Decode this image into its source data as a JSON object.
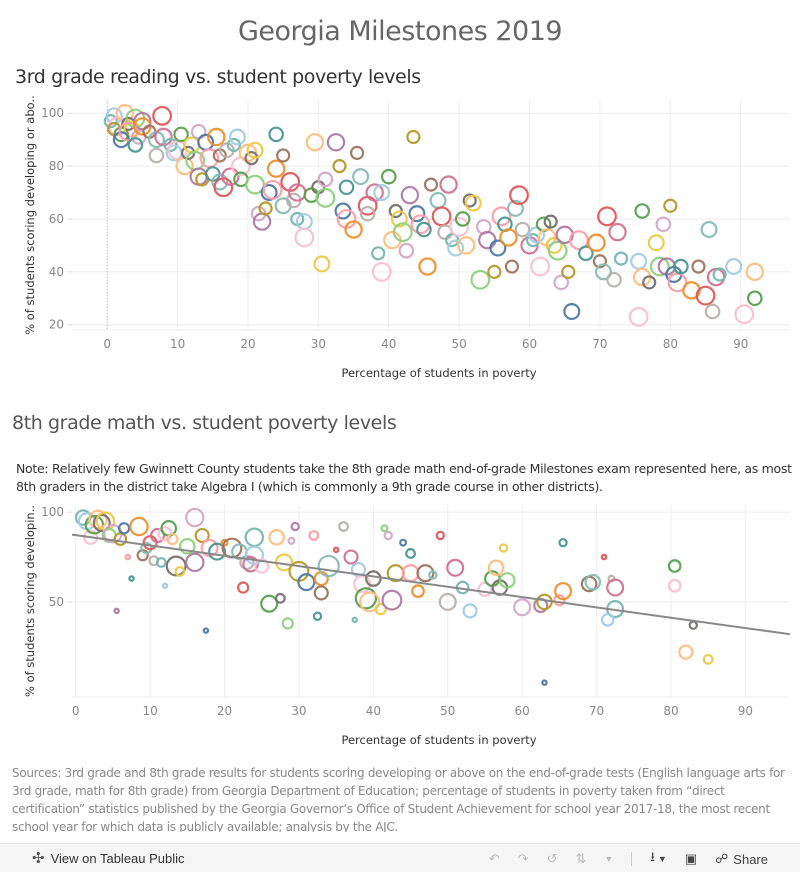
{
  "title": "Georgia Milestones 2019",
  "section1": {
    "title": "3rd grade reading vs. student poverty levels"
  },
  "section2": {
    "title": "8th grade math vs. student poverty levels",
    "note": "Note: Relatively few Gwinnett County students take the 8th grade math end-of-grade Milestones exam represented here, as most 8th graders in the district take Algebra I (which is commonly a 9th grade course in other districts)."
  },
  "sources": "Sources: 3rd grade and 8th grade results for students scoring developing or above on the end-of-grade tests (English language arts for 3rd grade, math for 8th grade) from Georgia Department of Education; percentage of students in poverty taken from “direct certification” statistics published by the Georgia Governor’s Office of Student Achievement for school year 2017-18, the most recent school year for which data is publicly available; analysis by the AJC.",
  "toolbar": {
    "view_label": "View on Tableau Public",
    "share_label": "Share",
    "icons": [
      "tableau-logo-icon",
      "undo-icon",
      "redo-icon",
      "revert-icon",
      "pause-icon",
      "dropdown-icon",
      "download-icon",
      "fullscreen-icon",
      "share-icon"
    ]
  },
  "palette": [
    "#4e79a7",
    "#f28e2b",
    "#e15759",
    "#76b7b2",
    "#59a14f",
    "#edc948",
    "#b07aa1",
    "#ff9da7",
    "#9c755f",
    "#bab0ac",
    "#a0cbe8",
    "#ffbe7d",
    "#8cd17d",
    "#b6992d",
    "#499894",
    "#86bcb6",
    "#d37295",
    "#fabfd2",
    "#79706e",
    "#d4a6c8"
  ],
  "chart_data": [
    {
      "type": "scatter",
      "title": "3rd grade reading vs. student poverty levels",
      "xlabel": "Percentage of students in poverty",
      "ylabel": "% of students scoring developing or abo..",
      "xlim": [
        -5,
        97
      ],
      "ylim": [
        18,
        105
      ],
      "xticks": [
        "0",
        "10",
        "20",
        "30",
        "40",
        "50",
        "60",
        "70",
        "80",
        "90"
      ],
      "yticks": [
        "20",
        "40",
        "60",
        "80",
        "100"
      ],
      "grid": true,
      "reference_line_x": 0,
      "points": [
        [
          0.5,
          97
        ],
        [
          1,
          99
        ],
        [
          1.5,
          95
        ],
        [
          2,
          92
        ],
        [
          2.5,
          100
        ],
        [
          3,
          96
        ],
        [
          3.5,
          94
        ],
        [
          4,
          98
        ],
        [
          4.5,
          91
        ],
        [
          5,
          97
        ],
        [
          1,
          94
        ],
        [
          2,
          90
        ],
        [
          3,
          93
        ],
        [
          4,
          88
        ],
        [
          5,
          95
        ],
        [
          6,
          93
        ],
        [
          7,
          90
        ],
        [
          7.8,
          99
        ],
        [
          7,
          84
        ],
        [
          8,
          91
        ],
        [
          9,
          88
        ],
        [
          9.5,
          85
        ],
        [
          10,
          86
        ],
        [
          10.5,
          92
        ],
        [
          11,
          80
        ],
        [
          11.5,
          85
        ],
        [
          12,
          88
        ],
        [
          12.5,
          82
        ],
        [
          13,
          93
        ],
        [
          13,
          76
        ],
        [
          13.5,
          75
        ],
        [
          14,
          89
        ],
        [
          14.5,
          83
        ],
        [
          15,
          77
        ],
        [
          15.5,
          91
        ],
        [
          16,
          84
        ],
        [
          16,
          74
        ],
        [
          16.5,
          72
        ],
        [
          17,
          86
        ],
        [
          17.5,
          76
        ],
        [
          18,
          88
        ],
        [
          18.5,
          91
        ],
        [
          19,
          80
        ],
        [
          19,
          75
        ],
        [
          20,
          85
        ],
        [
          20.5,
          83
        ],
        [
          21,
          86
        ],
        [
          21,
          73
        ],
        [
          21.5,
          62
        ],
        [
          22,
          59
        ],
        [
          22.5,
          64
        ],
        [
          23,
          70
        ],
        [
          23.5,
          71
        ],
        [
          24,
          92
        ],
        [
          24,
          79
        ],
        [
          25,
          84
        ],
        [
          25,
          65
        ],
        [
          26,
          74
        ],
        [
          26.5,
          67
        ],
        [
          27,
          70
        ],
        [
          27,
          60
        ],
        [
          28,
          59
        ],
        [
          28,
          53
        ],
        [
          29,
          69
        ],
        [
          29.5,
          89
        ],
        [
          30,
          72
        ],
        [
          30.5,
          43
        ],
        [
          31,
          68
        ],
        [
          31,
          75
        ],
        [
          32.5,
          89
        ],
        [
          33,
          80
        ],
        [
          33.5,
          63
        ],
        [
          34,
          60
        ],
        [
          34,
          72
        ],
        [
          35,
          56
        ],
        [
          35.5,
          85
        ],
        [
          36,
          76
        ],
        [
          37,
          65
        ],
        [
          37,
          62
        ],
        [
          38,
          70
        ],
        [
          38.5,
          47
        ],
        [
          39,
          70
        ],
        [
          39,
          40
        ],
        [
          40,
          76
        ],
        [
          40.5,
          52
        ],
        [
          41,
          63
        ],
        [
          41.5,
          60
        ],
        [
          42,
          55
        ],
        [
          42.5,
          48
        ],
        [
          43,
          69
        ],
        [
          43.5,
          91
        ],
        [
          44,
          62
        ],
        [
          44.5,
          58
        ],
        [
          45,
          56
        ],
        [
          45.5,
          42
        ],
        [
          46,
          73
        ],
        [
          47,
          67
        ],
        [
          47.5,
          61
        ],
        [
          48,
          55
        ],
        [
          48.5,
          73
        ],
        [
          49,
          52
        ],
        [
          49.5,
          49
        ],
        [
          50,
          57
        ],
        [
          50.5,
          60
        ],
        [
          51,
          50
        ],
        [
          51.5,
          67
        ],
        [
          52,
          66
        ],
        [
          53,
          37
        ],
        [
          53.5,
          57
        ],
        [
          54,
          52
        ],
        [
          55,
          40
        ],
        [
          55.5,
          49
        ],
        [
          56,
          61
        ],
        [
          56.5,
          58
        ],
        [
          57,
          53
        ],
        [
          57.5,
          42
        ],
        [
          58,
          64
        ],
        [
          58.5,
          69
        ],
        [
          59,
          56
        ],
        [
          60,
          50
        ],
        [
          60.5,
          52
        ],
        [
          61,
          54
        ],
        [
          61.5,
          42
        ],
        [
          62,
          58
        ],
        [
          62.5,
          53
        ],
        [
          63,
          59
        ],
        [
          63.5,
          50
        ],
        [
          64,
          48
        ],
        [
          64.5,
          36
        ],
        [
          65,
          54
        ],
        [
          65.5,
          40
        ],
        [
          66,
          25
        ],
        [
          67,
          52
        ],
        [
          68,
          47
        ],
        [
          69.5,
          51
        ],
        [
          70,
          44
        ],
        [
          70.5,
          40
        ],
        [
          71,
          61
        ],
        [
          72,
          37
        ],
        [
          72.5,
          55
        ],
        [
          73,
          45
        ],
        [
          75.5,
          44
        ],
        [
          75.5,
          23
        ],
        [
          76,
          63
        ],
        [
          76,
          38
        ],
        [
          77,
          36
        ],
        [
          78,
          51
        ],
        [
          78.5,
          42
        ],
        [
          79,
          58
        ],
        [
          79.5,
          42
        ],
        [
          80,
          65
        ],
        [
          80.5,
          39
        ],
        [
          81,
          36
        ],
        [
          81.5,
          42
        ],
        [
          83,
          33
        ],
        [
          84,
          42
        ],
        [
          85.5,
          56
        ],
        [
          85,
          31
        ],
        [
          86,
          25
        ],
        [
          86.5,
          38
        ],
        [
          87,
          39
        ],
        [
          89,
          42
        ],
        [
          90.5,
          24
        ],
        [
          92,
          30
        ],
        [
          92,
          40
        ]
      ]
    },
    {
      "type": "scatter",
      "title": "8th grade math vs. student poverty levels",
      "xlabel": "Percentage of students in poverty",
      "ylabel": "% of students scoring developin..",
      "xlim": [
        -0.5,
        96
      ],
      "ylim": [
        -3,
        104
      ],
      "xticks": [
        "0",
        "10",
        "20",
        "30",
        "40",
        "50",
        "60",
        "70",
        "80",
        "90"
      ],
      "yticks": [
        "50",
        "100"
      ],
      "grid": true,
      "trend_line": {
        "x": [
          -0.5,
          96
        ],
        "y": [
          87.5,
          32
        ]
      },
      "points": [
        [
          1,
          97,
          10
        ],
        [
          1.5,
          95,
          11
        ],
        [
          2,
          86,
          9
        ],
        [
          2.5,
          93,
          12
        ],
        [
          3,
          96,
          12
        ],
        [
          3.5,
          94,
          11
        ],
        [
          4,
          95,
          12
        ],
        [
          4.5,
          87,
          9
        ],
        [
          5,
          88,
          12
        ],
        [
          5.5,
          45,
          3
        ],
        [
          6,
          85,
          8
        ],
        [
          6.5,
          91,
          7
        ],
        [
          7,
          75,
          3
        ],
        [
          7.5,
          63,
          3
        ],
        [
          8.5,
          92,
          12
        ],
        [
          9,
          76,
          7
        ],
        [
          9.5,
          80,
          7
        ],
        [
          10,
          83,
          9
        ],
        [
          10.5,
          73,
          6
        ],
        [
          11,
          87,
          9
        ],
        [
          11.5,
          72,
          6
        ],
        [
          12,
          59,
          3
        ],
        [
          12,
          88,
          9
        ],
        [
          12.5,
          91,
          10
        ],
        [
          13,
          85,
          7
        ],
        [
          13.5,
          70,
          13
        ],
        [
          14,
          67,
          6
        ],
        [
          15,
          81,
          10
        ],
        [
          16,
          97,
          12
        ],
        [
          16,
          72,
          12
        ],
        [
          17,
          87,
          9
        ],
        [
          17.5,
          34,
          3
        ],
        [
          18,
          80,
          11
        ],
        [
          19,
          78,
          11
        ],
        [
          20,
          83,
          4
        ],
        [
          21,
          80,
          13
        ],
        [
          22,
          78,
          10
        ],
        [
          22.5,
          58,
          7
        ],
        [
          23,
          72,
          9
        ],
        [
          23.5,
          71,
          10
        ],
        [
          24,
          86,
          12
        ],
        [
          24,
          76,
          12
        ],
        [
          25,
          70,
          9
        ],
        [
          26,
          49,
          11
        ],
        [
          27,
          86,
          10
        ],
        [
          27.5,
          52,
          6
        ],
        [
          28,
          72,
          11
        ],
        [
          28.5,
          38,
          7
        ],
        [
          29,
          84,
          4
        ],
        [
          29.5,
          92,
          5
        ],
        [
          30,
          67,
          13
        ],
        [
          31,
          61,
          11
        ],
        [
          32,
          87,
          6
        ],
        [
          32.5,
          42,
          5
        ],
        [
          33,
          63,
          9
        ],
        [
          33,
          55,
          9
        ],
        [
          34,
          70,
          14
        ],
        [
          35,
          79,
          3
        ],
        [
          36,
          92,
          6
        ],
        [
          37,
          75,
          9
        ],
        [
          37.5,
          40,
          3
        ],
        [
          38,
          68,
          9
        ],
        [
          38.5,
          60,
          11
        ],
        [
          39,
          52,
          14
        ],
        [
          39.5,
          50,
          13
        ],
        [
          40,
          63,
          10
        ],
        [
          41,
          46,
          7
        ],
        [
          41.5,
          91,
          4
        ],
        [
          42,
          87,
          5
        ],
        [
          42.5,
          51,
          13
        ],
        [
          43,
          66,
          11
        ],
        [
          44,
          83,
          4
        ],
        [
          45,
          66,
          11
        ],
        [
          45,
          77,
          6
        ],
        [
          46,
          56,
          8
        ],
        [
          47,
          66,
          11
        ],
        [
          48,
          65,
          5
        ],
        [
          49,
          87,
          5
        ],
        [
          50,
          50,
          11
        ],
        [
          51,
          69,
          11
        ],
        [
          52,
          58,
          8
        ],
        [
          53,
          45,
          9
        ],
        [
          55,
          57,
          9
        ],
        [
          56,
          63,
          10
        ],
        [
          56.5,
          69,
          10
        ],
        [
          57,
          58,
          10
        ],
        [
          57.5,
          80,
          5
        ],
        [
          58,
          62,
          10
        ],
        [
          60,
          47,
          11
        ],
        [
          62.5,
          48,
          9
        ],
        [
          63,
          50,
          10
        ],
        [
          63,
          5,
          3
        ],
        [
          65,
          51,
          7
        ],
        [
          65.5,
          83,
          5
        ],
        [
          65.5,
          56,
          11
        ],
        [
          69,
          60,
          10
        ],
        [
          69.5,
          61,
          10
        ],
        [
          71,
          75,
          3
        ],
        [
          72,
          63,
          4
        ],
        [
          72.5,
          58,
          11
        ],
        [
          72.5,
          46,
          11
        ],
        [
          71.5,
          40,
          8
        ],
        [
          80.5,
          59,
          8
        ],
        [
          80.5,
          70,
          8
        ],
        [
          82,
          22,
          9
        ],
        [
          83,
          37,
          5
        ],
        [
          85,
          18,
          6
        ]
      ]
    }
  ]
}
